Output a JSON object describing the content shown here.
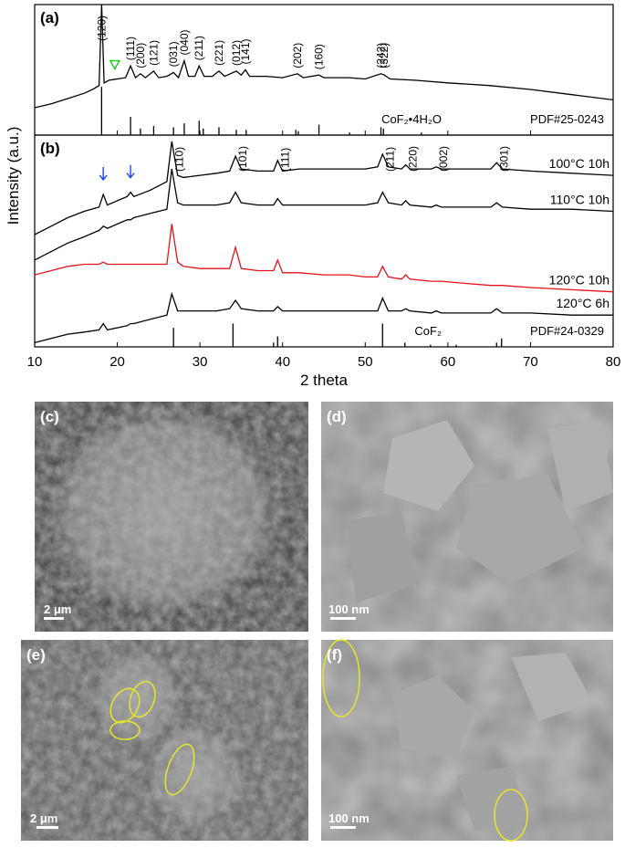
{
  "chart_data": [
    {
      "type": "line",
      "label": "(a)",
      "xlim": [
        10,
        80
      ],
      "ylim": [
        0,
        100
      ],
      "series": [
        {
          "color": "#000000",
          "x": [
            10,
            12,
            14,
            16,
            17,
            17.8,
            18.1,
            18.4,
            19,
            20,
            21,
            21.6,
            22.2,
            22.8,
            23.4,
            24.4,
            25,
            26,
            26.8,
            27.4,
            28.1,
            28.6,
            29.4,
            29.9,
            30.5,
            31.5,
            32.3,
            33,
            34.4,
            35,
            35.5,
            36,
            38,
            40,
            41.8,
            42.5,
            44.4,
            45,
            48,
            50,
            51.9,
            52.3,
            53,
            56,
            60,
            65,
            70,
            75,
            80
          ],
          "values": [
            21,
            24,
            28,
            32,
            35,
            38,
            100,
            40,
            42,
            43,
            44,
            53,
            44,
            47,
            44,
            49,
            44,
            45,
            48,
            44,
            57,
            45,
            45,
            53,
            45,
            45,
            49,
            45,
            49,
            46,
            50,
            45,
            45,
            44,
            47,
            44,
            46,
            44,
            44,
            43,
            47,
            46,
            43,
            42,
            40,
            38,
            35,
            31,
            27
          ]
        }
      ],
      "reference": {
        "name": "CoF₂•4H₂O",
        "card": "PDF#25-0243",
        "color": "#000000",
        "x": [
          18.1,
          21.6,
          22.8,
          24.4,
          26.8,
          28.1,
          29.9,
          30.4,
          32.3,
          34.4,
          35.6,
          41.6,
          41.9,
          44.4,
          48.1,
          51.9,
          52.2,
          56.8
        ],
        "values": [
          37,
          14,
          5,
          7,
          6,
          9,
          11,
          5,
          6,
          4,
          4,
          4,
          3,
          8,
          2,
          6,
          5,
          2
        ]
      },
      "annotations": [
        {
          "text": "(120)",
          "x": 18.1
        },
        {
          "text": "(111)",
          "x": 21.6
        },
        {
          "text": "(200)",
          "x": 22.8
        },
        {
          "text": "(121)",
          "x": 24.4
        },
        {
          "text": "(031)",
          "x": 26.8
        },
        {
          "text": "(040)",
          "x": 28.1
        },
        {
          "text": "(211)",
          "x": 29.9
        },
        {
          "text": "(221)",
          "x": 32.3
        },
        {
          "text": "(012)",
          "x": 34.4
        },
        {
          "text": "(141)",
          "x": 35.5
        },
        {
          "text": "(202)",
          "x": 41.8
        },
        {
          "text": "(160)",
          "x": 44.4
        },
        {
          "text": "(242)",
          "x": 51.9
        },
        {
          "text": "(322)",
          "x": 52.3
        }
      ],
      "markers": {
        "shape": "triangle",
        "color": "#00cc00",
        "x": [
          19.7
        ]
      }
    },
    {
      "type": "line",
      "label": "(b)",
      "xlim": [
        10,
        80
      ],
      "ylim": [
        0,
        100
      ],
      "xticks": [
        10,
        20,
        30,
        40,
        50,
        60,
        70,
        80
      ],
      "xlabel": "2 theta",
      "ylabel": "Intensity (a.u.)",
      "x": [
        10,
        12,
        14,
        16,
        17.8,
        18.3,
        18.8,
        20,
        21.2,
        21.6,
        22,
        24,
        26,
        26.6,
        27.3,
        28,
        30,
        32,
        33.6,
        34.3,
        35,
        37,
        38.9,
        39.4,
        40,
        42,
        45,
        48,
        50,
        51.5,
        52.1,
        52.8,
        54.4,
        54.9,
        55.4,
        58,
        58.6,
        59.2,
        62,
        65.2,
        65.9,
        66.6,
        70,
        75,
        80
      ],
      "series": [
        {
          "name": "100°C  10h",
          "color": "#000000",
          "values": [
            53,
            57,
            61,
            64,
            66,
            72,
            67,
            69,
            71,
            73,
            71,
            74,
            78,
            97,
            81,
            80,
            81,
            82,
            83,
            90,
            84,
            83,
            83,
            88,
            83,
            84,
            84,
            84,
            84,
            85,
            91,
            85,
            84,
            86,
            84,
            84,
            85,
            84,
            84,
            84,
            87,
            84,
            83,
            82,
            81
          ]
        },
        {
          "name": "110°C  10h",
          "color": "#000000",
          "values": [
            41,
            45,
            49,
            52,
            55,
            57,
            56,
            58,
            60,
            60,
            61,
            63,
            65,
            84,
            68,
            67,
            67,
            67,
            68,
            73,
            68,
            67,
            67,
            70,
            67,
            67,
            67,
            67,
            67,
            68,
            73,
            68,
            67,
            69,
            67,
            66,
            67,
            66,
            66,
            66,
            68,
            66,
            65,
            65,
            64
          ]
        },
        {
          "name": "120°C  10h",
          "color": "#e8111a",
          "values": [
            34,
            36,
            38,
            39,
            39,
            40,
            39,
            39,
            39,
            39,
            39,
            39,
            39,
            58,
            40,
            38,
            37,
            37,
            37,
            47,
            37,
            36,
            36,
            41,
            35,
            35,
            34,
            34,
            33,
            33,
            38,
            33,
            32,
            34,
            32,
            31,
            31,
            31,
            30,
            29,
            29,
            29,
            28,
            27,
            26
          ]
        },
        {
          "name": "120°C  6h",
          "color": "#000000",
          "values": [
            2,
            4,
            6,
            7,
            8,
            11,
            8,
            9,
            10,
            11,
            11,
            13,
            15,
            25,
            17,
            17,
            17,
            17,
            18,
            22,
            18,
            17,
            17,
            19,
            17,
            17,
            17,
            17,
            17,
            17,
            23,
            17,
            17,
            18,
            17,
            16,
            17,
            16,
            16,
            16,
            18,
            16,
            16,
            15,
            15
          ]
        }
      ],
      "reference": {
        "name": "CoF₂",
        "card": "PDF#24-0329",
        "color": "#000000",
        "x": [
          26.8,
          34.0,
          38.9,
          39.4,
          52.1,
          54.8,
          57.9,
          61.0,
          65.9,
          66.5
        ],
        "values": [
          9,
          11,
          2,
          5,
          11,
          2,
          1,
          1,
          2,
          4
        ]
      },
      "annotations": [
        {
          "text": "(110)",
          "x": 26.6
        },
        {
          "text": "(101)",
          "x": 34.3
        },
        {
          "text": "(111)",
          "x": 39.4
        },
        {
          "text": "(211)",
          "x": 52.1
        },
        {
          "text": "(220)",
          "x": 54.9
        },
        {
          "text": "(002)",
          "x": 58.6
        },
        {
          "text": "(301)",
          "x": 65.9
        }
      ],
      "markers": {
        "shape": "arrow",
        "color": "#1f3fff",
        "x": [
          18.3,
          21.6
        ]
      }
    }
  ],
  "images": [
    {
      "label": "(c)",
      "scale": "2 μm"
    },
    {
      "label": "(d)",
      "scale": "100 nm"
    },
    {
      "label": "(e)",
      "scale": "2 μm"
    },
    {
      "label": "(f)",
      "scale": "100 nm"
    }
  ]
}
